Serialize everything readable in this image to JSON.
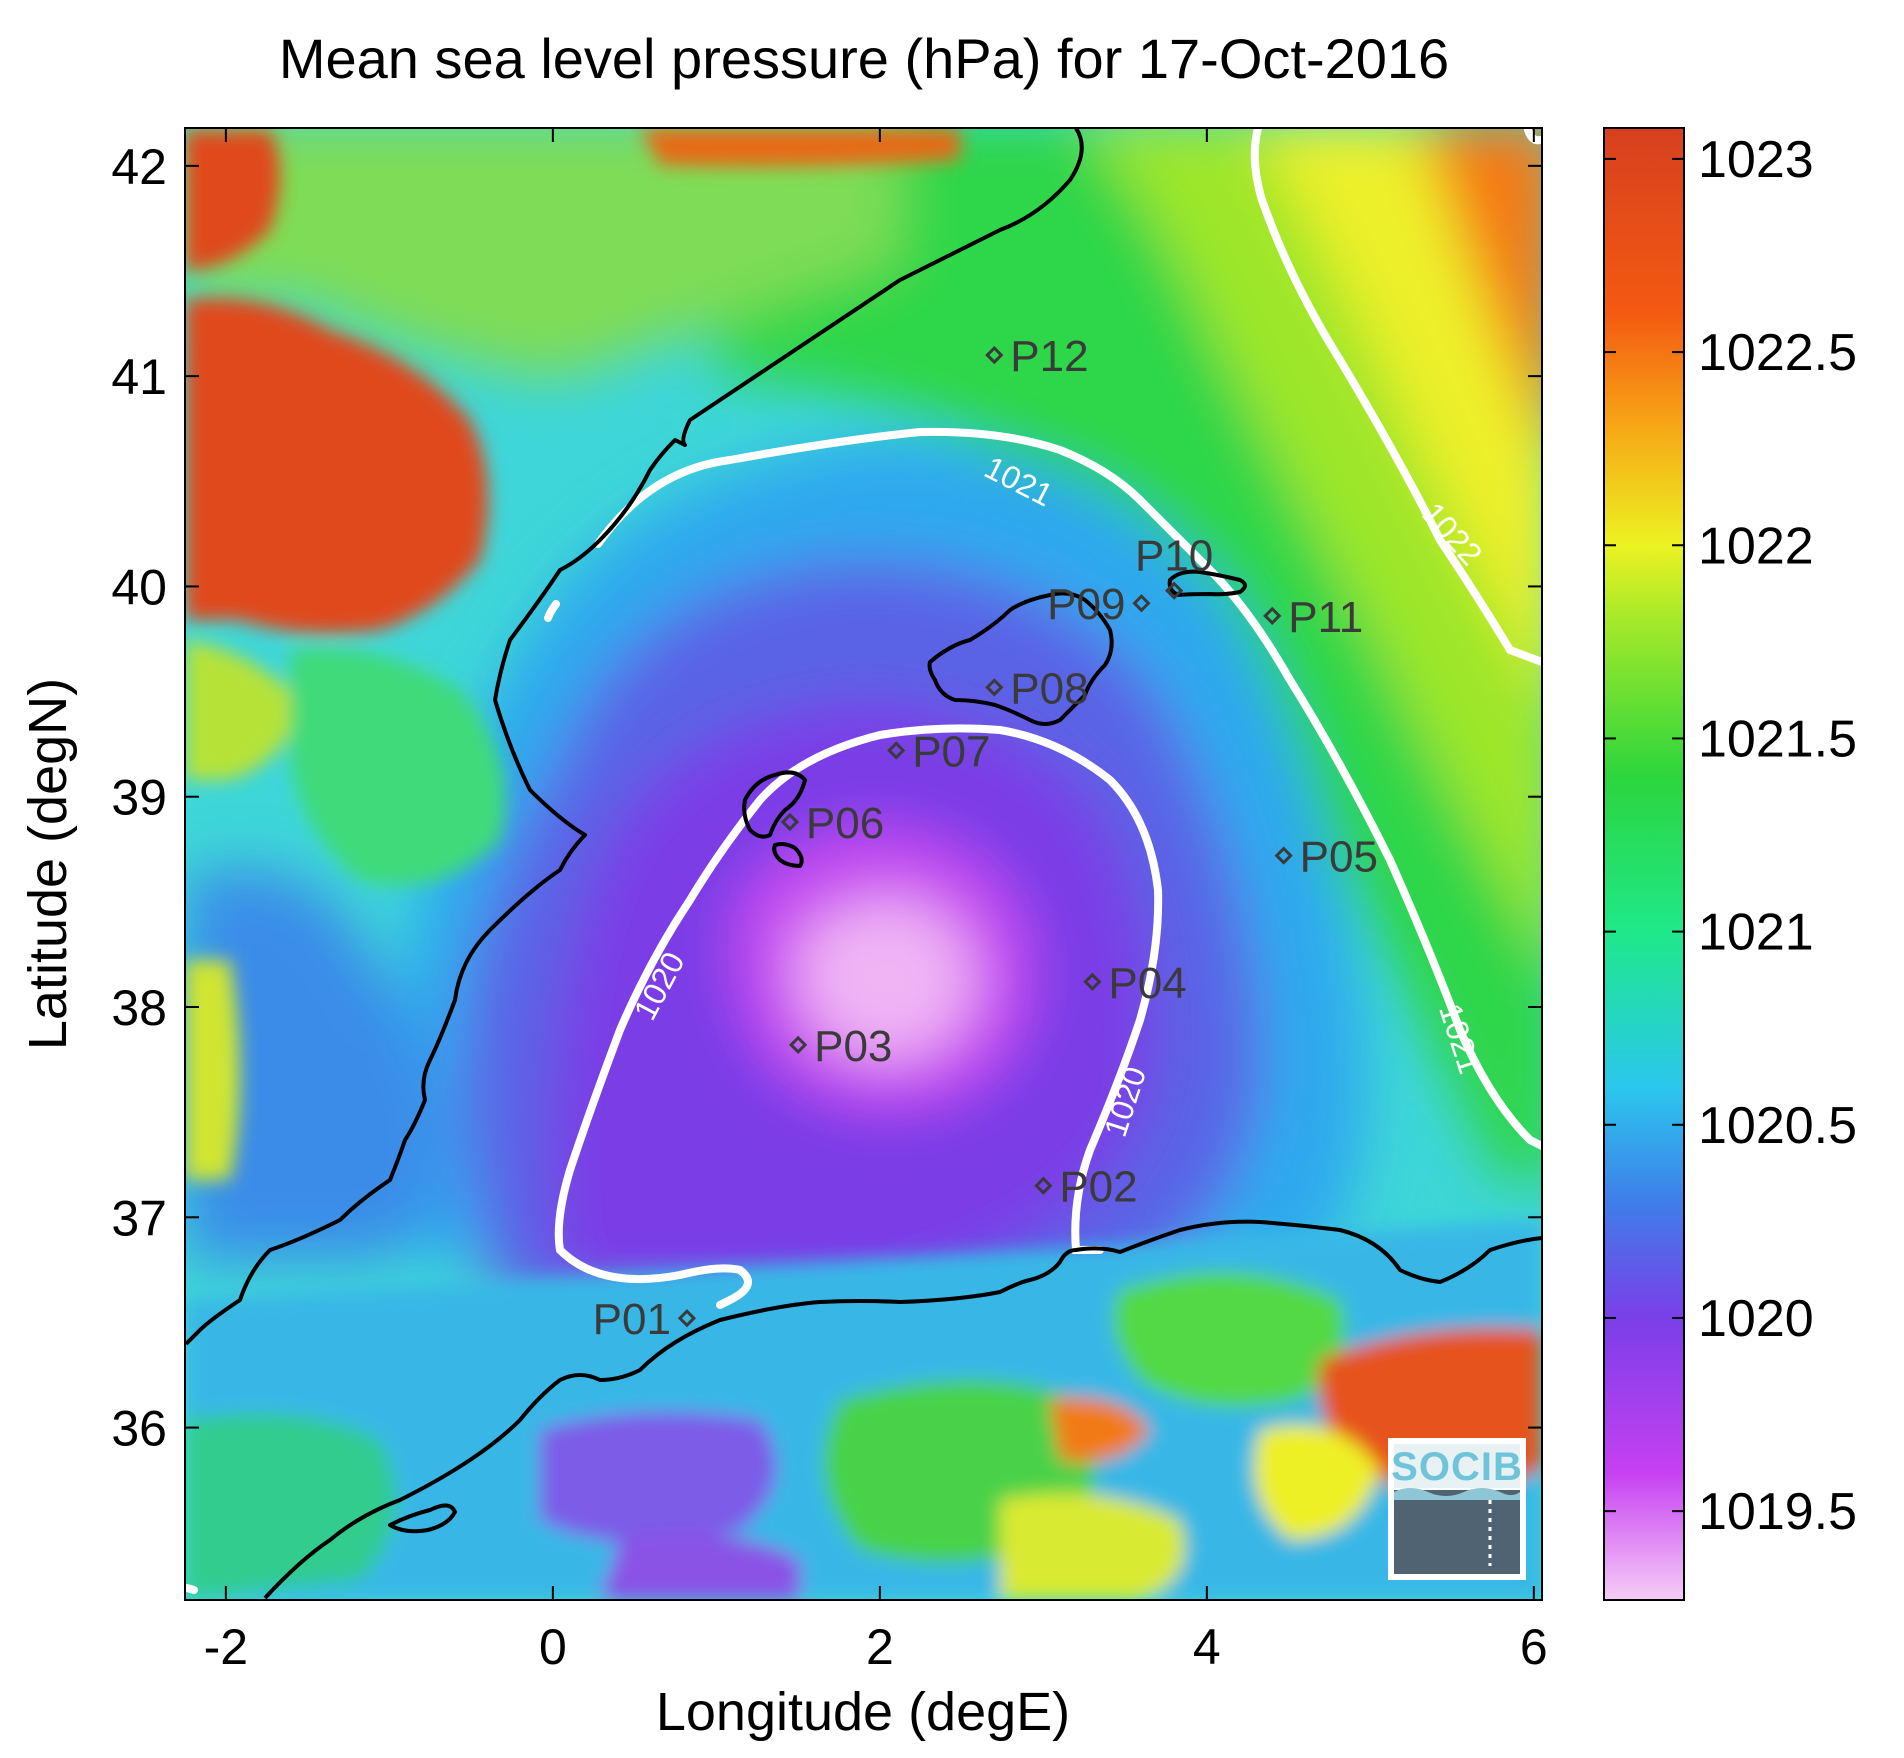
{
  "title": "Mean sea level pressure (hPa) for 17-Oct-2016",
  "xlabel": "Longitude (degE)",
  "ylabel": "Latitude (degN)",
  "x_ticks": [
    {
      "value": -2,
      "label": "-2"
    },
    {
      "value": 0,
      "label": "0"
    },
    {
      "value": 2,
      "label": "2"
    },
    {
      "value": 4,
      "label": "4"
    },
    {
      "value": 6,
      "label": "6"
    }
  ],
  "y_ticks": [
    {
      "value": 36,
      "label": "36"
    },
    {
      "value": 37,
      "label": "37"
    },
    {
      "value": 38,
      "label": "38"
    },
    {
      "value": 39,
      "label": "39"
    },
    {
      "value": 40,
      "label": "40"
    },
    {
      "value": 41,
      "label": "41"
    },
    {
      "value": 42,
      "label": "42"
    }
  ],
  "x_range": [
    -2.25,
    6.05
  ],
  "y_range": [
    35.18,
    42.18
  ],
  "colorbar": {
    "range": [
      1019.27,
      1023.08
    ],
    "ticks": [
      {
        "value": 1019.5,
        "label": "1019.5"
      },
      {
        "value": 1020,
        "label": "1020"
      },
      {
        "value": 1020.5,
        "label": "1020.5"
      },
      {
        "value": 1021,
        "label": "1021"
      },
      {
        "value": 1021.5,
        "label": "1021.5"
      },
      {
        "value": 1022,
        "label": "1022"
      },
      {
        "value": 1022.5,
        "label": "1022.5"
      },
      {
        "value": 1023,
        "label": "1023"
      }
    ],
    "colors": [
      {
        "value": 1019.27,
        "color": "#f6cdf6"
      },
      {
        "value": 1019.6,
        "color": "#c640f2"
      },
      {
        "value": 1020.0,
        "color": "#7a3fe8"
      },
      {
        "value": 1020.3,
        "color": "#3f7ee9"
      },
      {
        "value": 1020.6,
        "color": "#2bc7ec"
      },
      {
        "value": 1021.0,
        "color": "#1fe88a"
      },
      {
        "value": 1021.4,
        "color": "#2cd53d"
      },
      {
        "value": 1021.8,
        "color": "#a3e82a"
      },
      {
        "value": 1022.0,
        "color": "#ecf222"
      },
      {
        "value": 1022.3,
        "color": "#f6a916"
      },
      {
        "value": 1022.6,
        "color": "#f45a12"
      },
      {
        "value": 1023.08,
        "color": "#d6401f"
      }
    ]
  },
  "contour_labels": [
    {
      "text": "1021",
      "lon": 2.85,
      "lat": 40.5,
      "angle": 27
    },
    {
      "text": "1022",
      "lon": 5.5,
      "lat": 40.25,
      "angle": 48
    },
    {
      "text": "1020",
      "lon": 0.65,
      "lat": 38.1,
      "angle": -62
    },
    {
      "text": "1020",
      "lon": 3.5,
      "lat": 37.55,
      "angle": -72
    },
    {
      "text": "1021",
      "lon": 5.55,
      "lat": 37.85,
      "angle": 72
    }
  ],
  "stations": [
    {
      "id": "P01",
      "lon": 0.82,
      "lat": 36.52,
      "anchor": "left"
    },
    {
      "id": "P02",
      "lon": 3.0,
      "lat": 37.15,
      "anchor": "right"
    },
    {
      "id": "P03",
      "lon": 1.5,
      "lat": 37.82,
      "anchor": "right"
    },
    {
      "id": "P04",
      "lon": 3.3,
      "lat": 38.12,
      "anchor": "right"
    },
    {
      "id": "P05",
      "lon": 4.47,
      "lat": 38.72,
      "anchor": "right"
    },
    {
      "id": "P06",
      "lon": 1.45,
      "lat": 38.88,
      "anchor": "right"
    },
    {
      "id": "P07",
      "lon": 2.1,
      "lat": 39.22,
      "anchor": "right"
    },
    {
      "id": "P08",
      "lon": 2.7,
      "lat": 39.52,
      "anchor": "right"
    },
    {
      "id": "P09",
      "lon": 3.6,
      "lat": 39.92,
      "anchor": "left"
    },
    {
      "id": "P10",
      "lon": 3.8,
      "lat": 39.98,
      "anchor": "above"
    },
    {
      "id": "P11",
      "lon": 4.4,
      "lat": 39.86,
      "anchor": "right"
    },
    {
      "id": "P12",
      "lon": 2.7,
      "lat": 41.1,
      "anchor": "right"
    }
  ],
  "logo": {
    "text": "SOCIB"
  }
}
